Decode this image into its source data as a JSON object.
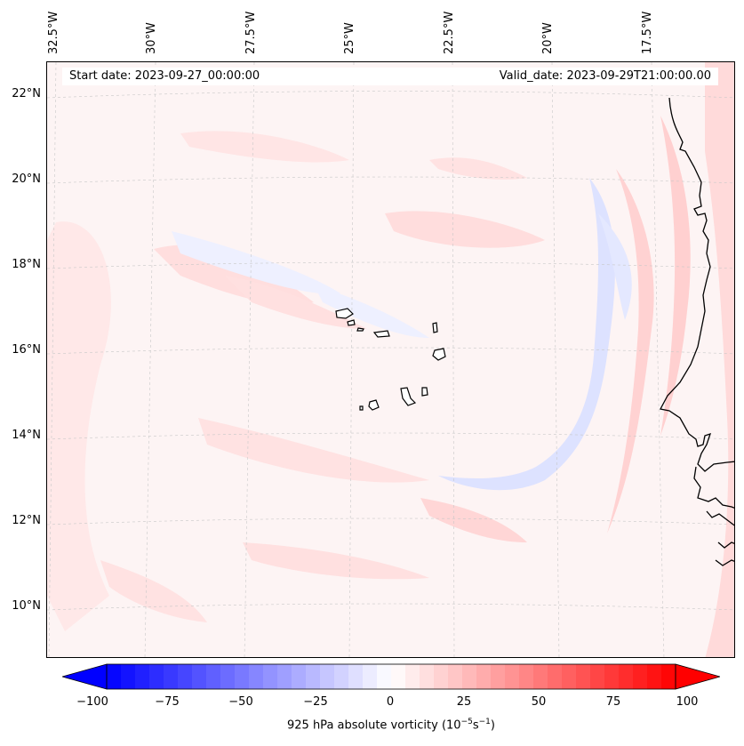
{
  "header": {
    "start_date": "Start date: 2023-09-27_00:00:00",
    "valid_date": "Valid_date: 2023-09-29T21:00:00.00"
  },
  "longitude_labels": [
    "32.5°W",
    "30°W",
    "27.5°W",
    "25°W",
    "22.5°W",
    "20°W",
    "17.5°W"
  ],
  "latitude_labels": [
    "22°N",
    "20°N",
    "18°N",
    "16°N",
    "14°N",
    "12°N",
    "10°N"
  ],
  "colorbar": {
    "ticks": [
      "−100",
      "−75",
      "−50",
      "−25",
      "0",
      "25",
      "50",
      "75",
      "100"
    ],
    "min": -100,
    "max": 100,
    "label": "925 hPa absolute vorticity (10",
    "label_exp1": "−5",
    "label_mid": "s",
    "label_exp2": "−1",
    "label_end": ")",
    "colors": {
      "negative": "#0000ff",
      "zero": "#ffffff",
      "positive": "#ff0000"
    }
  },
  "map": {
    "field_colors": {
      "background": "#fdf4f4",
      "pink": "#ffd6d6",
      "light_pink": "#ffe7e7",
      "blue": "#dde2ff",
      "coast": "#000000",
      "grid": "#c8c8c8"
    }
  }
}
